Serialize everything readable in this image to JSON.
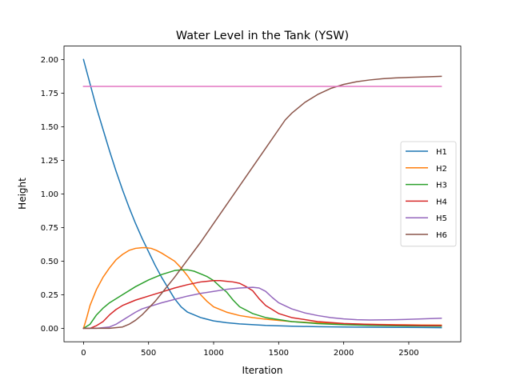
{
  "chart_data": {
    "type": "line",
    "title": "Water Level in the Tank (YSW)",
    "xlabel": "Iteration",
    "ylabel": "Height",
    "xlim": [
      -150,
      2900
    ],
    "ylim": [
      -0.1,
      2.1
    ],
    "xticks": [
      0,
      500,
      1000,
      1500,
      2000,
      2500
    ],
    "yticks": [
      0.0,
      0.25,
      0.5,
      0.75,
      1.0,
      1.25,
      1.5,
      1.75,
      2.0
    ],
    "xtick_labels": [
      "0",
      "500",
      "1000",
      "1500",
      "2000",
      "2500"
    ],
    "ytick_labels": [
      "0.00",
      "0.25",
      "0.50",
      "0.75",
      "1.00",
      "1.25",
      "1.50",
      "1.75",
      "2.00"
    ],
    "grid": false,
    "legend_position": "right",
    "series": [
      {
        "name": "H1",
        "color": "#1f77b4",
        "x": [
          0,
          50,
          100,
          150,
          200,
          250,
          300,
          350,
          400,
          450,
          500,
          550,
          600,
          650,
          700,
          750,
          800,
          900,
          1000,
          1100,
          1200,
          1400,
          1600,
          1800,
          2000,
          2200,
          2400,
          2600,
          2750
        ],
        "y": [
          2.0,
          1.82,
          1.64,
          1.48,
          1.32,
          1.17,
          1.03,
          0.9,
          0.78,
          0.67,
          0.57,
          0.47,
          0.38,
          0.3,
          0.22,
          0.16,
          0.12,
          0.08,
          0.055,
          0.042,
          0.033,
          0.022,
          0.016,
          0.012,
          0.01,
          0.008,
          0.007,
          0.006,
          0.005
        ]
      },
      {
        "name": "H2",
        "color": "#ff7f0e",
        "x": [
          0,
          25,
          50,
          100,
          150,
          200,
          250,
          300,
          350,
          400,
          450,
          480,
          520,
          560,
          600,
          650,
          700,
          750,
          800,
          850,
          900,
          950,
          1000,
          1100,
          1200,
          1300,
          1400,
          1600,
          1800,
          2000,
          2200,
          2400,
          2600,
          2750
        ],
        "y": [
          0.0,
          0.08,
          0.17,
          0.29,
          0.38,
          0.45,
          0.51,
          0.55,
          0.58,
          0.595,
          0.6,
          0.6,
          0.595,
          0.58,
          0.56,
          0.53,
          0.5,
          0.45,
          0.39,
          0.32,
          0.25,
          0.2,
          0.16,
          0.12,
          0.095,
          0.08,
          0.068,
          0.05,
          0.04,
          0.034,
          0.03,
          0.027,
          0.025,
          0.024
        ]
      },
      {
        "name": "H3",
        "color": "#2ca02c",
        "x": [
          0,
          50,
          100,
          150,
          200,
          300,
          400,
          500,
          600,
          700,
          750,
          800,
          850,
          900,
          950,
          1000,
          1050,
          1100,
          1150,
          1200,
          1300,
          1400,
          1600,
          1800,
          2000,
          2200,
          2400,
          2600,
          2750
        ],
        "y": [
          0.0,
          0.03,
          0.1,
          0.15,
          0.19,
          0.25,
          0.31,
          0.36,
          0.4,
          0.43,
          0.435,
          0.435,
          0.425,
          0.405,
          0.385,
          0.355,
          0.31,
          0.27,
          0.21,
          0.16,
          0.11,
          0.08,
          0.05,
          0.035,
          0.027,
          0.022,
          0.019,
          0.017,
          0.016
        ]
      },
      {
        "name": "H4",
        "color": "#d62728",
        "x": [
          0,
          50,
          100,
          150,
          200,
          250,
          300,
          400,
          500,
          600,
          700,
          800,
          900,
          1000,
          1050,
          1100,
          1150,
          1200,
          1250,
          1300,
          1350,
          1400,
          1500,
          1600,
          1800,
          2000,
          2200,
          2400,
          2600,
          2750
        ],
        "y": [
          0.0,
          0.0,
          0.02,
          0.05,
          0.1,
          0.14,
          0.17,
          0.21,
          0.24,
          0.27,
          0.3,
          0.325,
          0.345,
          0.355,
          0.355,
          0.35,
          0.345,
          0.335,
          0.31,
          0.28,
          0.22,
          0.17,
          0.11,
          0.08,
          0.05,
          0.036,
          0.029,
          0.025,
          0.022,
          0.021
        ]
      },
      {
        "name": "H5",
        "color": "#9467bd",
        "x": [
          0,
          100,
          200,
          250,
          300,
          350,
          400,
          450,
          500,
          600,
          700,
          800,
          900,
          1000,
          1100,
          1200,
          1300,
          1350,
          1400,
          1450,
          1500,
          1600,
          1700,
          1800,
          1900,
          2000,
          2100,
          2200,
          2400,
          2600,
          2750
        ],
        "y": [
          0.0,
          0.0,
          0.01,
          0.03,
          0.06,
          0.09,
          0.12,
          0.145,
          0.16,
          0.19,
          0.215,
          0.24,
          0.26,
          0.275,
          0.29,
          0.3,
          0.305,
          0.3,
          0.275,
          0.23,
          0.19,
          0.145,
          0.115,
          0.095,
          0.08,
          0.07,
          0.064,
          0.062,
          0.064,
          0.07,
          0.075
        ]
      },
      {
        "name": "H6",
        "color": "#8c564b",
        "x": [
          0,
          100,
          200,
          300,
          350,
          400,
          450,
          500,
          550,
          600,
          700,
          800,
          900,
          1000,
          1100,
          1200,
          1300,
          1400,
          1500,
          1550,
          1600,
          1700,
          1800,
          1900,
          2000,
          2100,
          2200,
          2300,
          2400,
          2500,
          2600,
          2750
        ],
        "y": [
          0.0,
          0.0,
          0.0,
          0.01,
          0.03,
          0.06,
          0.1,
          0.15,
          0.2,
          0.26,
          0.38,
          0.51,
          0.64,
          0.78,
          0.92,
          1.06,
          1.2,
          1.34,
          1.48,
          1.55,
          1.6,
          1.68,
          1.74,
          1.785,
          1.815,
          1.835,
          1.848,
          1.857,
          1.863,
          1.867,
          1.87,
          1.875
        ]
      },
      {
        "color": "#e377c2",
        "x": [
          0,
          2750
        ],
        "y": [
          1.8,
          1.8
        ]
      }
    ]
  }
}
